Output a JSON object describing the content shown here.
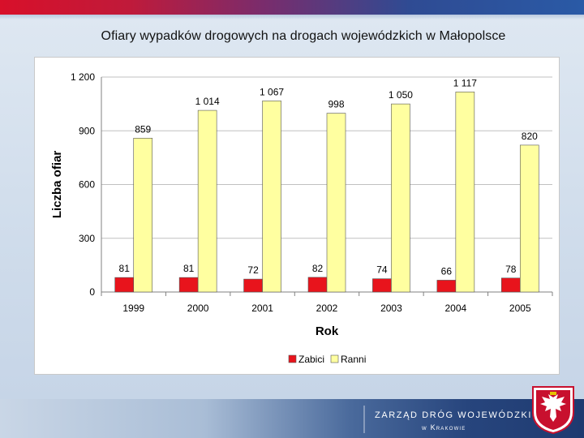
{
  "slide": {
    "title": "Ofiary wypadków drogowych na drogach wojewódzkich w Małopolsce"
  },
  "footer": {
    "line1": "ZARZĄD DRÓG WOJEWÓDZKICH",
    "line2": "w Krakowie"
  },
  "colors": {
    "zabici": "#e8141c",
    "ranni": "#ffffa0"
  },
  "icons": {
    "crest": "malopolska-coat-of-arms-icon"
  },
  "chart_data": {
    "type": "bar",
    "title": "",
    "xlabel": "Rok",
    "ylabel": "Liczba ofiar",
    "categories": [
      "1999",
      "2000",
      "2001",
      "2002",
      "2003",
      "2004",
      "2005"
    ],
    "series": [
      {
        "name": "Zabici",
        "values": [
          81,
          81,
          72,
          82,
          74,
          66,
          78
        ],
        "labels": [
          "81",
          "81",
          "72",
          "82",
          "74",
          "66",
          "78"
        ]
      },
      {
        "name": "Ranni",
        "values": [
          859,
          1014,
          1067,
          998,
          1050,
          1117,
          820
        ],
        "labels": [
          "859",
          "1 014",
          "1 067",
          "998",
          "1 050",
          "1 117",
          "820"
        ]
      }
    ],
    "ylim": [
      0,
      1200
    ],
    "yticks": [
      0,
      300,
      600,
      900,
      1200
    ],
    "ytick_labels": [
      "0",
      "300",
      "600",
      "900",
      "1 200"
    ],
    "grid": true,
    "legend": "bottom"
  }
}
